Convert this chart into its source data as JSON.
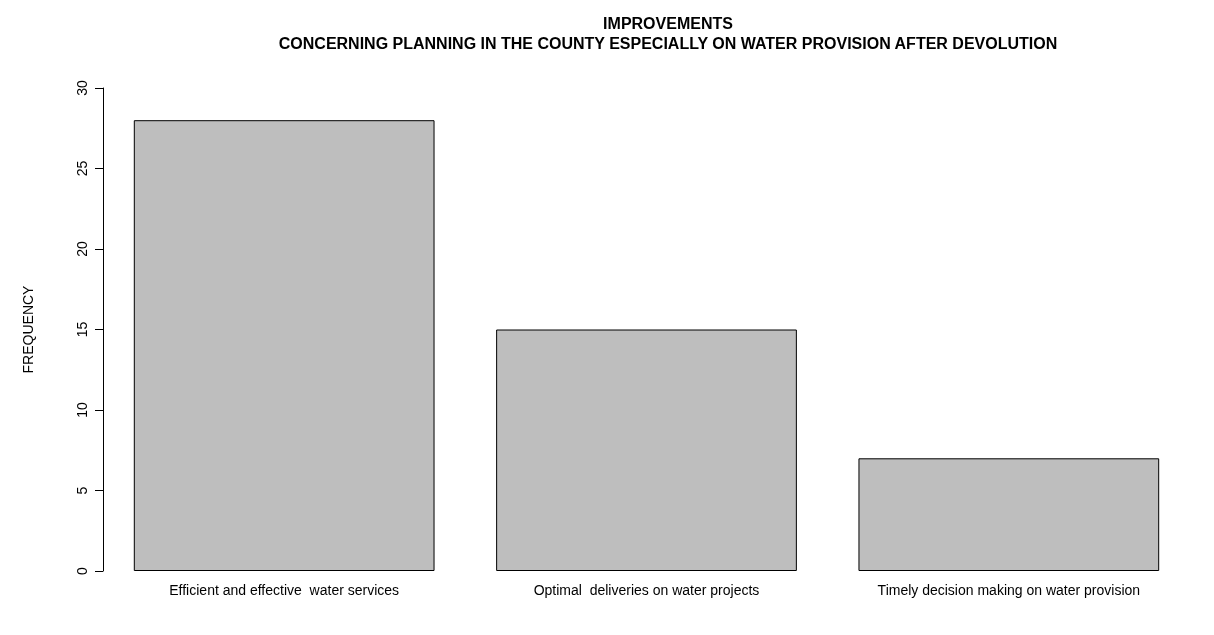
{
  "chart_data": {
    "type": "bar",
    "title": "IMPROVEMENTS",
    "subtitle": "CONCERNING PLANNING IN THE COUNTY ESPECIALLY ON WATER PROVISION AFTER DEVOLUTION",
    "ylabel": "FREQUENCY",
    "categories": [
      "Efficient and effective  water services",
      "Optimal  deliveries on water projects",
      "Timely decision making on water provision"
    ],
    "values": [
      28,
      15,
      7
    ],
    "color": "#bebebe",
    "ylim": [
      0,
      30
    ],
    "yticks": [
      0,
      5,
      10,
      15,
      20,
      25,
      30
    ],
    "grid": false
  }
}
